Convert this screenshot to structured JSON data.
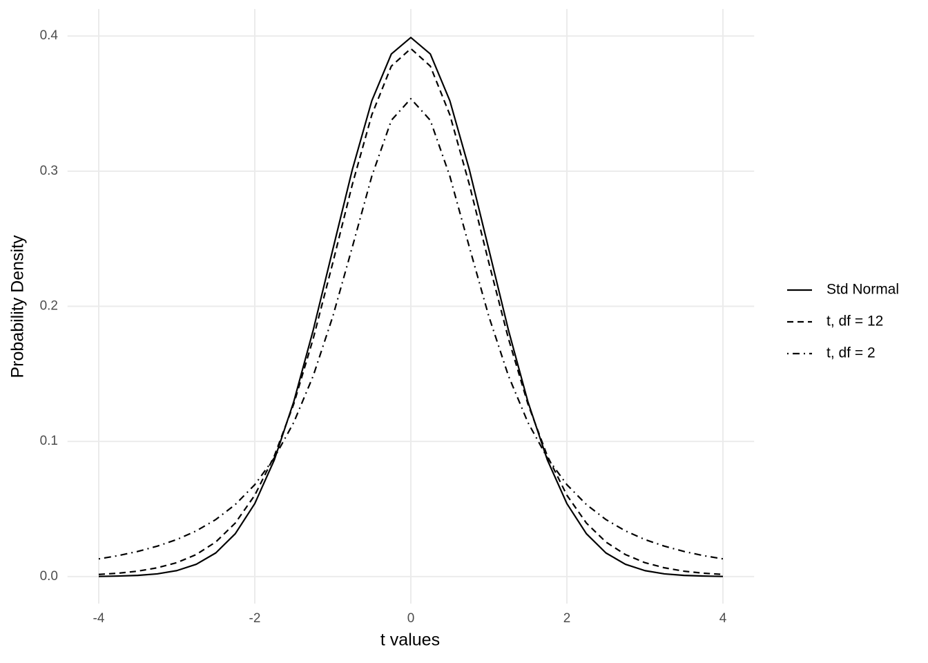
{
  "chart_data": {
    "type": "line",
    "x_label": "t values",
    "y_label": "Probability Density",
    "x": [
      -4,
      -3.75,
      -3.5,
      -3.25,
      -3,
      -2.75,
      -2.5,
      -2.25,
      -2,
      -1.75,
      -1.5,
      -1.25,
      -1,
      -0.75,
      -0.5,
      -0.25,
      0,
      0.25,
      0.5,
      0.75,
      1,
      1.25,
      1.5,
      1.75,
      2,
      2.25,
      2.5,
      2.75,
      3,
      3.25,
      3.5,
      3.75,
      4
    ],
    "series": [
      {
        "name": "Std Normal",
        "color": "#000000",
        "linetype": "solid",
        "values": [
          0.0001,
          0.0004,
          0.0009,
          0.002,
          0.0044,
          0.0091,
          0.0175,
          0.0317,
          0.054,
          0.0863,
          0.1295,
          0.1826,
          0.242,
          0.3011,
          0.3521,
          0.3867,
          0.3989,
          0.3867,
          0.3521,
          0.3011,
          0.242,
          0.1826,
          0.1295,
          0.0863,
          0.054,
          0.0317,
          0.0175,
          0.0091,
          0.0044,
          0.002,
          0.0009,
          0.0004,
          0.0001
        ]
      },
      {
        "name": "t, df = 12",
        "color": "#000000",
        "linetype": "dashed",
        "values": [
          0.0016,
          0.0025,
          0.004,
          0.0065,
          0.0103,
          0.0163,
          0.0256,
          0.0396,
          0.0602,
          0.0892,
          0.1278,
          0.1763,
          0.2322,
          0.2901,
          0.3417,
          0.3777,
          0.3907,
          0.3777,
          0.3417,
          0.2901,
          0.2322,
          0.1763,
          0.1278,
          0.0892,
          0.0602,
          0.0396,
          0.0256,
          0.0163,
          0.0103,
          0.0065,
          0.004,
          0.0025,
          0.0016
        ]
      },
      {
        "name": "t, df = 2",
        "color": "#000000",
        "linetype": "dotdash",
        "values": [
          0.0131,
          0.0155,
          0.0186,
          0.0225,
          0.0274,
          0.0338,
          0.0422,
          0.0533,
          0.068,
          0.0878,
          0.1141,
          0.1487,
          0.1925,
          0.2438,
          0.2963,
          0.3376,
          0.3536,
          0.3376,
          0.2963,
          0.2438,
          0.1925,
          0.1487,
          0.1141,
          0.0878,
          0.068,
          0.0533,
          0.0422,
          0.0338,
          0.0274,
          0.0225,
          0.0186,
          0.0155,
          0.0131
        ]
      }
    ],
    "xlim": [
      -4.4,
      4.4
    ],
    "xticks": [
      -4,
      -2,
      0,
      2,
      4
    ],
    "ylim": [
      -0.02,
      0.42
    ],
    "yticks": [
      {
        "value": 0,
        "label": "0.0"
      },
      0.1,
      0.2,
      0.3,
      0.4
    ],
    "grid": true,
    "legend_position": "right"
  }
}
